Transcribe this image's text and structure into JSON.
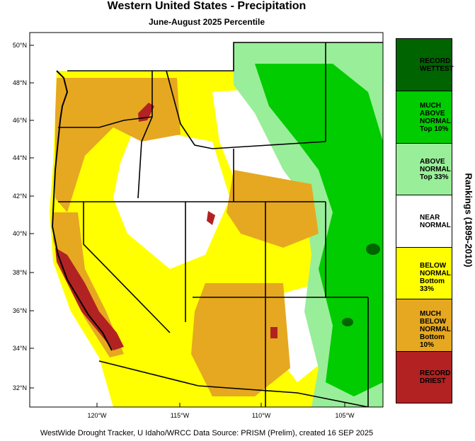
{
  "title": "Western United States - Precipitation",
  "subtitle": "June-August 2025 Percentile",
  "credits": "WestWide Drought Tracker, U Idaho/WRCC Data Source: PRISM (Prelim), created 16 SEP 2025",
  "legend_title": "Rankings (1895-2010)",
  "legend": [
    {
      "label": "RECORD\nWETTEST",
      "color": "#006400"
    },
    {
      "label": "MUCH\nABOVE\nNORMAL\nTop 10%",
      "color": "#00cc00"
    },
    {
      "label": "ABOVE\nNORMAL\nTop 33%",
      "color": "#99ee99"
    },
    {
      "label": "NEAR\nNORMAL",
      "color": "#ffffff"
    },
    {
      "label": "BELOW\nNORMAL\nBottom 33%",
      "color": "#ffff00"
    },
    {
      "label": "MUCH\nBELOW\nNORMAL\nBottom 10%",
      "color": "#e6a820"
    },
    {
      "label": "RECORD\nDRIEST",
      "color": "#b22222"
    }
  ],
  "lat_labels": [
    "50°N",
    "48°N",
    "46°N",
    "44°N",
    "42°N",
    "40°N",
    "38°N",
    "36°N",
    "34°N",
    "32°N"
  ],
  "lon_labels": [
    "120°W",
    "115°W",
    "110°W",
    "105°W"
  ]
}
